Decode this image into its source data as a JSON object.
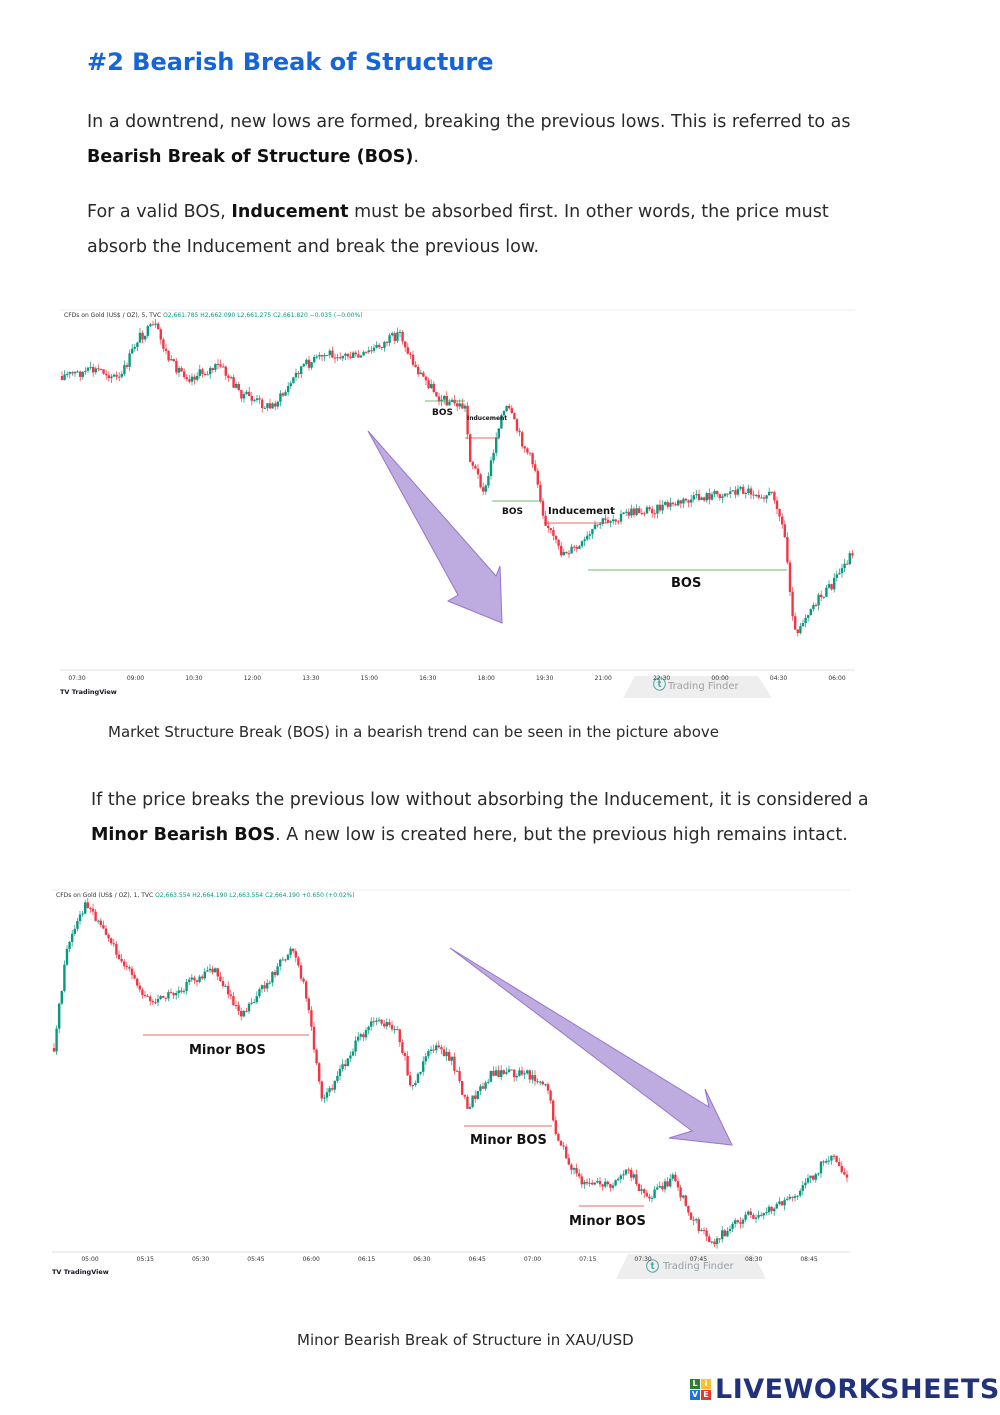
{
  "heading": "#2 Bearish Break of Structure",
  "para1": {
    "text": "In a downtrend, new lows are formed, breaking the previous lows. This is referred to as",
    "bold": "Bearish Break of Structure (BOS)",
    "after": "."
  },
  "para2": {
    "before": "For a valid BOS,",
    "bold": "Inducement",
    "after": "must be absorbed first. In other words, the price must absorb the Inducement and break the previous low."
  },
  "chart1": {
    "header_title": "CFDs on Gold (US$ / OZ), 5, TVC",
    "ohlc": {
      "o": "O2,661.785",
      "h": "H2,662.090",
      "l": "L2,661.275",
      "c": "C2,661.820",
      "chg": "−0.035 (−0.00%)"
    },
    "ticks": [
      "07:30",
      "09:00",
      "10:30",
      "12:00",
      "13:30",
      "15:00",
      "16:30",
      "18:00",
      "19:30",
      "21:00",
      "22:30",
      "00:00",
      "04:30",
      "06:00"
    ],
    "labels": {
      "bos1": "BOS",
      "ind1": "Inducement",
      "bos2": "BOS",
      "ind2": "Inducement",
      "bos3": "BOS"
    },
    "watermark": "Trading Finder",
    "brand": "TradingView"
  },
  "caption1": "Market Structure Break (BOS) in a bearish trend can be seen in the picture above",
  "para3": {
    "text": "If the price breaks the previous low without absorbing the Inducement, it is considered a",
    "bold": "Minor Bearish BOS",
    "after": ". A new low is created here, but the previous high remains intact."
  },
  "chart2": {
    "header_title": "CFDs on Gold (US$ / OZ), 1, TVC",
    "ohlc": {
      "o": "O2,663.554",
      "h": "H2,664.190",
      "l": "L2,663.554",
      "c": "C2,664.190",
      "chg": "+0.650 (+0.02%)"
    },
    "ticks": [
      "05:00",
      "05:15",
      "05:30",
      "05:45",
      "06:00",
      "06:15",
      "06:30",
      "06:45",
      "07:00",
      "07:15",
      "07:30",
      "07:45",
      "08:30",
      "08:45"
    ],
    "labels": {
      "minor1": "Minor BOS",
      "minor2": "Minor BOS",
      "minor3": "Minor BOS"
    },
    "watermark": "Trading Finder",
    "brand": "TradingView"
  },
  "caption2": "Minor Bearish Break of Structure in XAU/USD",
  "footer": {
    "brand": "LIVEWORKSHEETS",
    "live_letters": [
      "L",
      "I",
      "V",
      "E"
    ]
  },
  "colors": {
    "heading": "#1565d8",
    "up": "#089981",
    "down": "#f23645",
    "arrow": "#b39ddb",
    "brand": "#22327a"
  }
}
